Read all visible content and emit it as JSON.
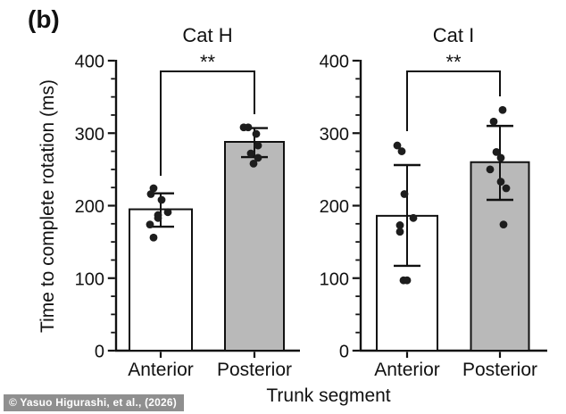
{
  "panel_label": "(b)",
  "watermark": "© Yasuo Higurashi, et al., (2026)",
  "axis": {
    "ylabel": "Time to complete rotation (ms)",
    "xlabel": "Trunk segment"
  },
  "colors": {
    "ink": "#111111",
    "point": "#1d1d1d",
    "anterior_fill": "#ffffff",
    "posterior_fill": "#b9b9b9",
    "watermark_bg": "#8f8f8f",
    "watermark_text": "#ffffff",
    "background": "#ffffff"
  },
  "chart_data": [
    {
      "type": "bar",
      "title": "Cat H",
      "categories": [
        "Anterior",
        "Posterior"
      ],
      "ylim": [
        0,
        400
      ],
      "yticks": [
        0,
        100,
        200,
        300,
        400
      ],
      "minor_tick_step": 25,
      "significance": "**",
      "series": [
        {
          "name": "Anterior",
          "mean": 195,
          "sd_low": 171,
          "sd_high": 217,
          "points": [
            224,
            216,
            208,
            191,
            187,
            183,
            174,
            156
          ],
          "point_dx": [
            -8,
            -11,
            1,
            8,
            -3,
            -3,
            -12,
            -8
          ]
        },
        {
          "name": "Posterior",
          "mean": 288,
          "sd_low": 267,
          "sd_high": 307,
          "points": [
            308,
            308,
            299,
            283,
            272,
            266,
            258
          ],
          "point_dx": [
            -12,
            -7,
            2,
            4,
            -4,
            4,
            -1
          ]
        }
      ]
    },
    {
      "type": "bar",
      "title": "Cat I",
      "categories": [
        "Anterior",
        "Posterior"
      ],
      "ylim": [
        0,
        400
      ],
      "yticks": [
        0,
        100,
        200,
        300,
        400
      ],
      "minor_tick_step": 25,
      "significance": "**",
      "series": [
        {
          "name": "Anterior",
          "mean": 186,
          "sd_low": 117,
          "sd_high": 256,
          "points": [
            283,
            275,
            216,
            183,
            173,
            164,
            97,
            97
          ],
          "point_dx": [
            -11,
            -6,
            -3,
            7,
            -8,
            -8,
            -4,
            0
          ]
        },
        {
          "name": "Posterior",
          "mean": 260,
          "sd_low": 208,
          "sd_high": 310,
          "points": [
            332,
            316,
            274,
            266,
            250,
            233,
            224,
            174
          ],
          "point_dx": [
            3,
            -7,
            -4,
            1,
            -11,
            1,
            7,
            4
          ]
        }
      ]
    }
  ]
}
